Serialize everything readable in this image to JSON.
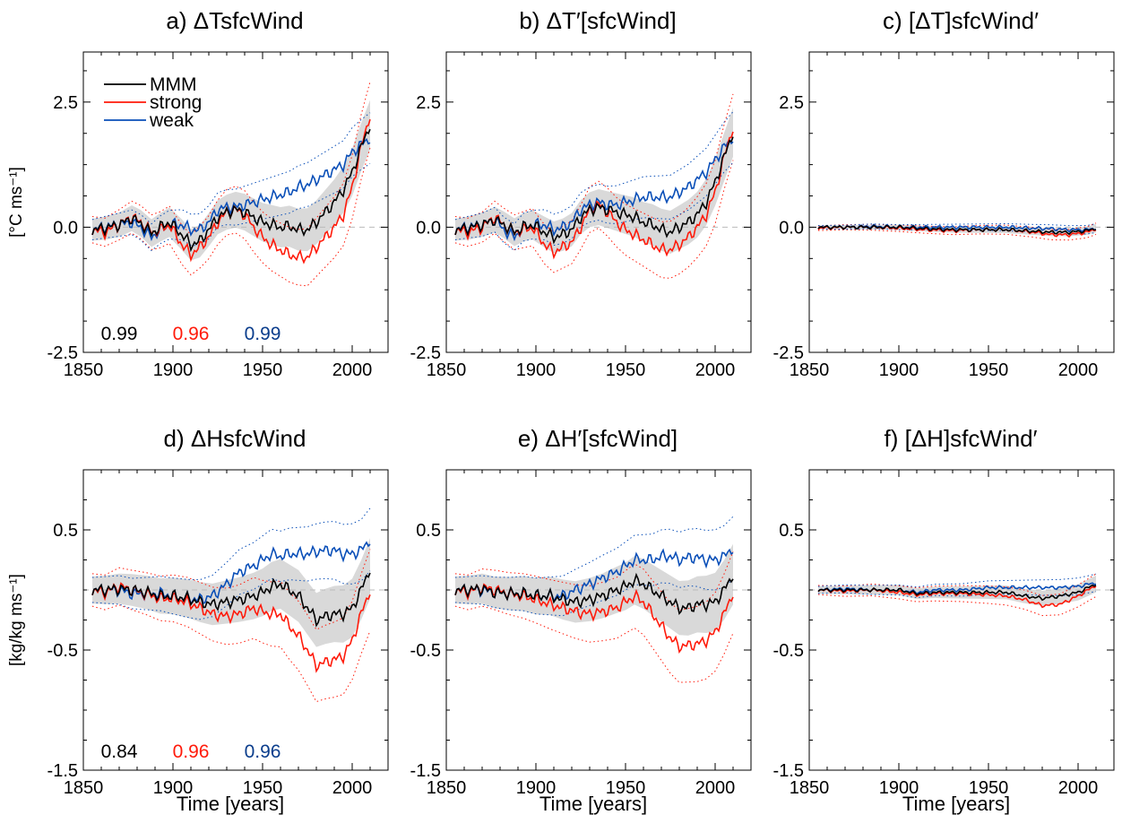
{
  "colors": {
    "mmm": "#000000",
    "strong": "#ff1a0a",
    "weak": "#0a4fb8",
    "weak_corr": "#0a3d8c",
    "spread": "#d9d9d9",
    "zero_line": "#bbbbbb"
  },
  "figure": {
    "x_ticklabels": [
      "1850",
      "1900",
      "1950",
      "2000"
    ],
    "xlabel": "Time [years]",
    "legend": [
      "MMM",
      "strong",
      "weak"
    ]
  },
  "chart_data": [
    {
      "type": "line",
      "panel": "a",
      "title": "a) ΔTsfcWind",
      "ylabel": "[°C ms⁻¹]",
      "xlim": [
        1850,
        2020
      ],
      "ylim": [
        -2.5,
        3.5
      ],
      "ytick_labels": [
        "2.5",
        "0.0",
        "-2.5"
      ],
      "x": [
        1855,
        1862,
        1870,
        1877,
        1882,
        1888,
        1893,
        1898,
        1905,
        1910,
        1915,
        1920,
        1925,
        1930,
        1935,
        1940,
        1945,
        1950,
        1955,
        1960,
        1965,
        1970,
        1975,
        1980,
        1985,
        1990,
        1995,
        2000,
        2005,
        2010
      ],
      "series": [
        {
          "name": "MMM",
          "values": [
            -0.05,
            -0.02,
            0.05,
            0.18,
            0.08,
            -0.12,
            0.0,
            0.1,
            -0.15,
            -0.35,
            -0.28,
            -0.05,
            0.2,
            0.3,
            0.35,
            0.3,
            0.2,
            0.1,
            0.05,
            0.0,
            0.02,
            -0.05,
            -0.05,
            0.1,
            0.3,
            0.5,
            0.75,
            1.1,
            1.6,
            2.05
          ]
        },
        {
          "name": "strong",
          "values": [
            -0.05,
            -0.1,
            0.05,
            0.2,
            0.1,
            -0.1,
            -0.05,
            0.05,
            -0.35,
            -0.55,
            -0.4,
            -0.2,
            0.1,
            0.3,
            0.35,
            0.25,
            0.0,
            -0.2,
            -0.35,
            -0.45,
            -0.55,
            -0.6,
            -0.6,
            -0.4,
            -0.2,
            0.0,
            0.25,
            0.8,
            1.6,
            2.25
          ]
        },
        {
          "name": "weak",
          "values": [
            -0.05,
            0.0,
            0.05,
            0.1,
            0.0,
            -0.2,
            -0.05,
            0.05,
            0.05,
            -0.05,
            -0.05,
            0.1,
            0.35,
            0.4,
            0.4,
            0.45,
            0.5,
            0.55,
            0.6,
            0.65,
            0.7,
            0.8,
            0.85,
            0.95,
            1.05,
            1.15,
            1.25,
            1.5,
            1.65,
            1.78
          ]
        }
      ],
      "correlations": [
        "0.99",
        "0.96",
        "0.99"
      ]
    },
    {
      "type": "line",
      "panel": "b",
      "title": "b) ΔT′[sfcWind]",
      "xlim": [
        1850,
        2020
      ],
      "ylim": [
        -2.5,
        3.5
      ],
      "ytick_labels": [
        "2.5",
        "0.0",
        "-2.5"
      ],
      "x": [
        1855,
        1862,
        1870,
        1877,
        1882,
        1888,
        1893,
        1898,
        1905,
        1910,
        1915,
        1920,
        1925,
        1930,
        1935,
        1940,
        1945,
        1950,
        1955,
        1960,
        1965,
        1970,
        1975,
        1980,
        1985,
        1990,
        1995,
        2000,
        2005,
        2010
      ],
      "series": [
        {
          "name": "MMM",
          "values": [
            -0.05,
            -0.02,
            0.05,
            0.15,
            0.05,
            -0.1,
            0.0,
            0.05,
            -0.1,
            -0.2,
            -0.15,
            -0.05,
            0.2,
            0.35,
            0.4,
            0.35,
            0.3,
            0.25,
            0.2,
            0.1,
            0.05,
            -0.05,
            -0.1,
            0.0,
            0.1,
            0.25,
            0.5,
            0.9,
            1.4,
            1.9
          ]
        },
        {
          "name": "strong",
          "values": [
            -0.05,
            -0.1,
            0.0,
            0.2,
            0.05,
            -0.1,
            -0.05,
            0.0,
            -0.35,
            -0.5,
            -0.4,
            -0.3,
            0.0,
            0.35,
            0.45,
            0.3,
            0.1,
            -0.05,
            -0.15,
            -0.25,
            -0.35,
            -0.45,
            -0.45,
            -0.35,
            -0.2,
            0.0,
            0.25,
            0.7,
            1.4,
            2.0
          ]
        },
        {
          "name": "weak",
          "values": [
            -0.05,
            0.0,
            0.05,
            0.15,
            -0.05,
            -0.2,
            0.0,
            0.05,
            0.05,
            -0.05,
            0.0,
            0.1,
            0.35,
            0.45,
            0.5,
            0.45,
            0.45,
            0.5,
            0.55,
            0.6,
            0.6,
            0.6,
            0.6,
            0.7,
            0.8,
            0.95,
            1.1,
            1.35,
            1.6,
            1.8
          ]
        }
      ]
    },
    {
      "type": "line",
      "panel": "c",
      "title": "c) [ΔT]sfcWind′",
      "xlim": [
        1850,
        2020
      ],
      "ylim": [
        -2.5,
        3.5
      ],
      "ytick_labels": [
        "2.5",
        "0.0",
        "-2.5"
      ],
      "x": [
        1855,
        1870,
        1885,
        1900,
        1915,
        1930,
        1945,
        1960,
        1975,
        1985,
        1995,
        2005,
        2010
      ],
      "series": [
        {
          "name": "MMM",
          "values": [
            0.0,
            0.0,
            0.0,
            0.0,
            -0.03,
            -0.05,
            -0.05,
            -0.05,
            -0.08,
            -0.1,
            -0.1,
            -0.07,
            -0.02
          ]
        },
        {
          "name": "strong",
          "values": [
            -0.02,
            0.0,
            0.0,
            -0.02,
            -0.05,
            -0.07,
            -0.05,
            -0.05,
            -0.1,
            -0.15,
            -0.15,
            -0.1,
            -0.03
          ]
        },
        {
          "name": "weak",
          "values": [
            0.0,
            0.0,
            0.02,
            0.0,
            0.0,
            0.0,
            0.0,
            0.0,
            -0.02,
            -0.03,
            -0.05,
            -0.05,
            -0.02
          ]
        }
      ]
    },
    {
      "type": "line",
      "panel": "d",
      "title": "d) ΔHsfcWind",
      "ylabel": "[kg/kg ms⁻¹]",
      "xlim": [
        1850,
        2020
      ],
      "ylim": [
        -1.5,
        1.0
      ],
      "ytick_labels": [
        "0.5",
        "-0.5",
        "-1.5"
      ],
      "x": [
        1855,
        1862,
        1870,
        1877,
        1885,
        1893,
        1900,
        1908,
        1915,
        1922,
        1930,
        1937,
        1945,
        1950,
        1955,
        1960,
        1965,
        1970,
        1975,
        1980,
        1985,
        1990,
        1995,
        2000,
        2005,
        2010
      ],
      "series": [
        {
          "name": "MMM",
          "values": [
            0.0,
            0.0,
            0.01,
            0.0,
            -0.02,
            -0.05,
            -0.05,
            -0.07,
            -0.1,
            -0.12,
            -0.1,
            -0.08,
            -0.05,
            -0.02,
            0.03,
            0.05,
            0.0,
            -0.05,
            -0.15,
            -0.25,
            -0.22,
            -0.2,
            -0.2,
            -0.15,
            0.0,
            0.18
          ]
        },
        {
          "name": "strong",
          "values": [
            0.0,
            -0.02,
            0.03,
            0.0,
            -0.03,
            -0.07,
            -0.07,
            -0.1,
            -0.15,
            -0.2,
            -0.22,
            -0.2,
            -0.15,
            -0.18,
            -0.2,
            -0.2,
            -0.3,
            -0.38,
            -0.5,
            -0.63,
            -0.6,
            -0.58,
            -0.55,
            -0.42,
            -0.2,
            0.0
          ]
        },
        {
          "name": "weak",
          "values": [
            0.0,
            0.0,
            0.0,
            -0.03,
            -0.03,
            -0.03,
            -0.05,
            -0.07,
            -0.08,
            -0.05,
            0.05,
            0.15,
            0.2,
            0.25,
            0.3,
            0.28,
            0.3,
            0.3,
            0.3,
            0.32,
            0.33,
            0.33,
            0.3,
            0.3,
            0.33,
            0.42
          ]
        }
      ],
      "correlations": [
        "0.84",
        "0.96",
        "0.96"
      ]
    },
    {
      "type": "line",
      "panel": "e",
      "title": "e) ΔH′[sfcWind]",
      "xlim": [
        1850,
        2020
      ],
      "ylim": [
        -1.5,
        1.0
      ],
      "ytick_labels": [
        "0.5",
        "-0.5",
        "-1.5"
      ],
      "x": [
        1855,
        1862,
        1870,
        1877,
        1885,
        1893,
        1900,
        1908,
        1915,
        1922,
        1930,
        1937,
        1945,
        1950,
        1955,
        1960,
        1965,
        1970,
        1975,
        1980,
        1985,
        1990,
        1995,
        2000,
        2005,
        2010
      ],
      "series": [
        {
          "name": "MMM",
          "values": [
            0.0,
            0.0,
            0.01,
            -0.02,
            -0.03,
            -0.03,
            -0.05,
            -0.05,
            -0.08,
            -0.1,
            -0.08,
            -0.05,
            0.0,
            0.03,
            0.08,
            0.05,
            0.0,
            -0.05,
            -0.1,
            -0.15,
            -0.15,
            -0.12,
            -0.12,
            -0.1,
            0.0,
            0.13
          ]
        },
        {
          "name": "strong",
          "values": [
            0.0,
            -0.02,
            0.02,
            0.0,
            -0.03,
            -0.05,
            -0.08,
            -0.12,
            -0.15,
            -0.18,
            -0.2,
            -0.18,
            -0.15,
            -0.1,
            -0.05,
            -0.1,
            -0.2,
            -0.3,
            -0.4,
            -0.47,
            -0.46,
            -0.45,
            -0.42,
            -0.35,
            -0.2,
            -0.02
          ]
        },
        {
          "name": "weak",
          "values": [
            0.0,
            0.0,
            0.0,
            -0.02,
            -0.03,
            -0.03,
            -0.05,
            -0.05,
            -0.05,
            0.0,
            0.05,
            0.1,
            0.15,
            0.2,
            0.25,
            0.25,
            0.25,
            0.28,
            0.28,
            0.25,
            0.27,
            0.27,
            0.25,
            0.25,
            0.28,
            0.35
          ]
        }
      ]
    },
    {
      "type": "line",
      "panel": "f",
      "title": "f) [ΔH]sfcWind′",
      "xlim": [
        1850,
        2020
      ],
      "ylim": [
        -1.5,
        1.0
      ],
      "ytick_labels": [
        "0.5",
        "-0.5",
        "-1.5"
      ],
      "x": [
        1855,
        1870,
        1885,
        1900,
        1910,
        1920,
        1935,
        1950,
        1960,
        1970,
        1980,
        1990,
        2000,
        2010
      ],
      "series": [
        {
          "name": "MMM",
          "values": [
            0.0,
            0.0,
            0.0,
            0.0,
            -0.03,
            -0.02,
            -0.02,
            -0.02,
            -0.02,
            -0.05,
            -0.07,
            -0.05,
            -0.02,
            0.05
          ]
        },
        {
          "name": "strong",
          "values": [
            0.0,
            -0.01,
            0.0,
            -0.02,
            -0.04,
            -0.03,
            -0.03,
            -0.04,
            -0.05,
            -0.08,
            -0.13,
            -0.12,
            -0.05,
            0.04
          ]
        },
        {
          "name": "weak",
          "values": [
            0.0,
            0.01,
            0.0,
            0.0,
            -0.02,
            0.0,
            0.0,
            0.02,
            0.02,
            0.02,
            0.02,
            0.02,
            0.03,
            0.06
          ]
        }
      ]
    }
  ]
}
